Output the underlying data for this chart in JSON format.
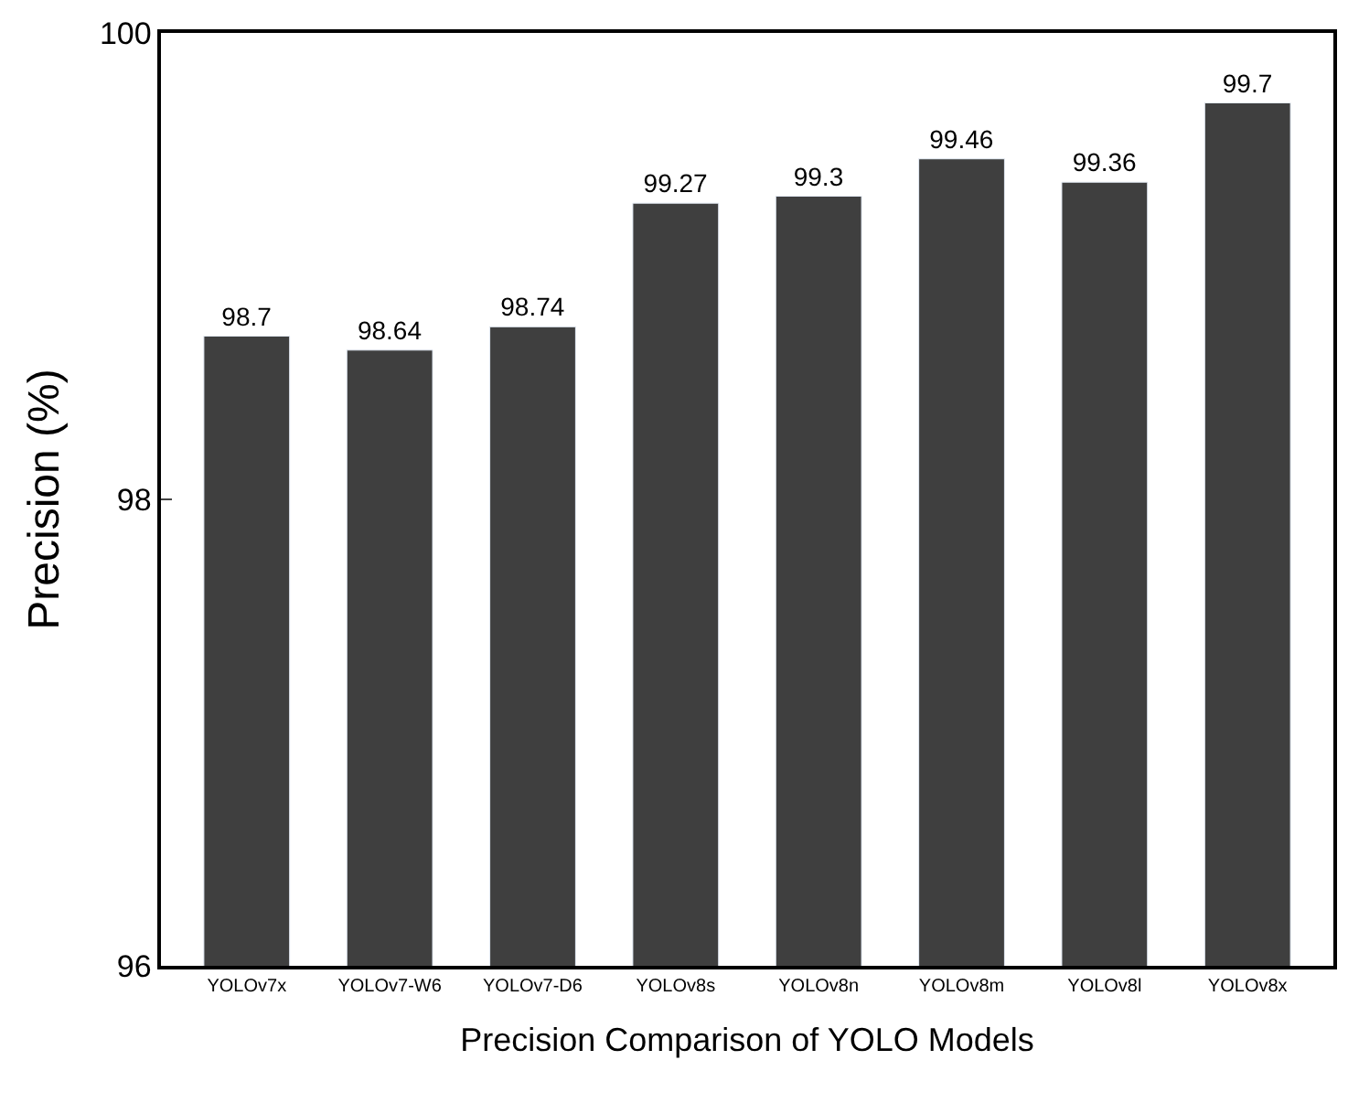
{
  "chart_data": {
    "type": "bar",
    "xlabel": "Precision Comparison of YOLO Models",
    "ylabel": "Precision (%)",
    "categories": [
      "YOLOv7x",
      "YOLOv7-W6",
      "YOLOv7-D6",
      "YOLOv8s",
      "YOLOv8n",
      "YOLOv8m",
      "YOLOv8l",
      "YOLOv8x"
    ],
    "values": [
      98.7,
      98.64,
      98.74,
      99.27,
      99.3,
      99.46,
      99.36,
      99.7
    ],
    "color": "#3f3f3f",
    "ylim": [
      96,
      100
    ],
    "yticks": [
      96,
      98,
      100
    ],
    "data_labels": true
  }
}
